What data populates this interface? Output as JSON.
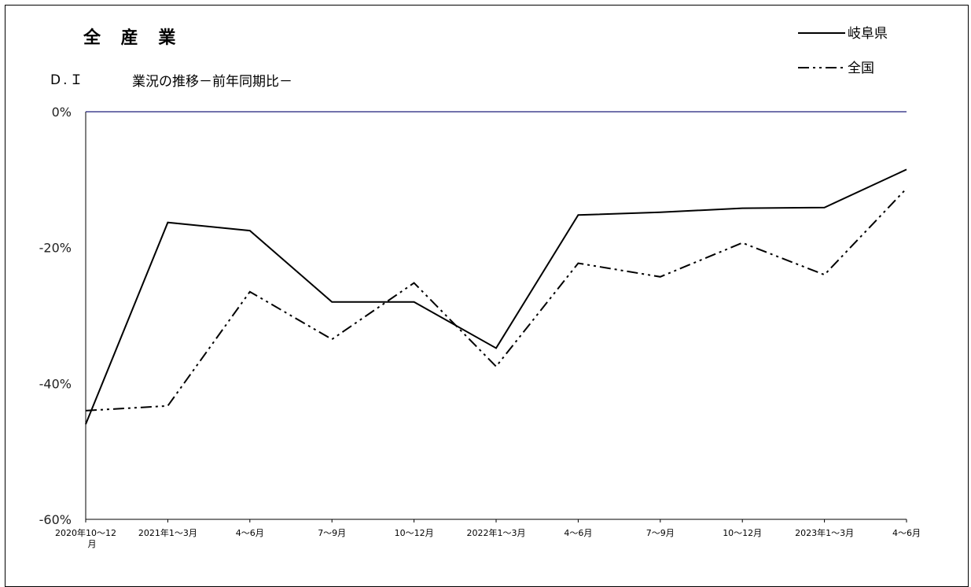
{
  "chart_data": {
    "type": "line",
    "title": "全 産 業",
    "subtitle": "業況の推移－前年同期比－",
    "ylabel": "D.Ｉ",
    "xlabel": "",
    "categories": [
      "2020年10～12月",
      "2021年1～3月",
      "4～6月",
      "7～9月",
      "10～12月",
      "2022年1～3月",
      "4～6月",
      "7～9月",
      "10～12月",
      "2023年1～3月",
      "4～6月"
    ],
    "series": [
      {
        "name": "岐阜県",
        "style": "solid",
        "color": "#000000",
        "values": [
          -46.0,
          -16.3,
          -17.5,
          -28.0,
          -28.0,
          -34.8,
          -15.2,
          -14.8,
          -14.2,
          -14.1,
          -8.5
        ]
      },
      {
        "name": "全国",
        "style": "dash-dot-dot",
        "color": "#000000",
        "values": [
          -44.0,
          -43.3,
          -26.5,
          -33.5,
          -25.2,
          -37.5,
          -22.3,
          -24.3,
          -19.3,
          -24.0,
          -11.3
        ]
      }
    ],
    "ylim": [
      -60,
      0
    ],
    "yticks": [
      0,
      -20,
      -40,
      -60
    ],
    "ytick_labels": [
      "0%",
      "-20%",
      "-40%",
      "-60%"
    ],
    "zero_line_color": "#1f1f7a",
    "grid": false,
    "legend_position": "top-right"
  }
}
